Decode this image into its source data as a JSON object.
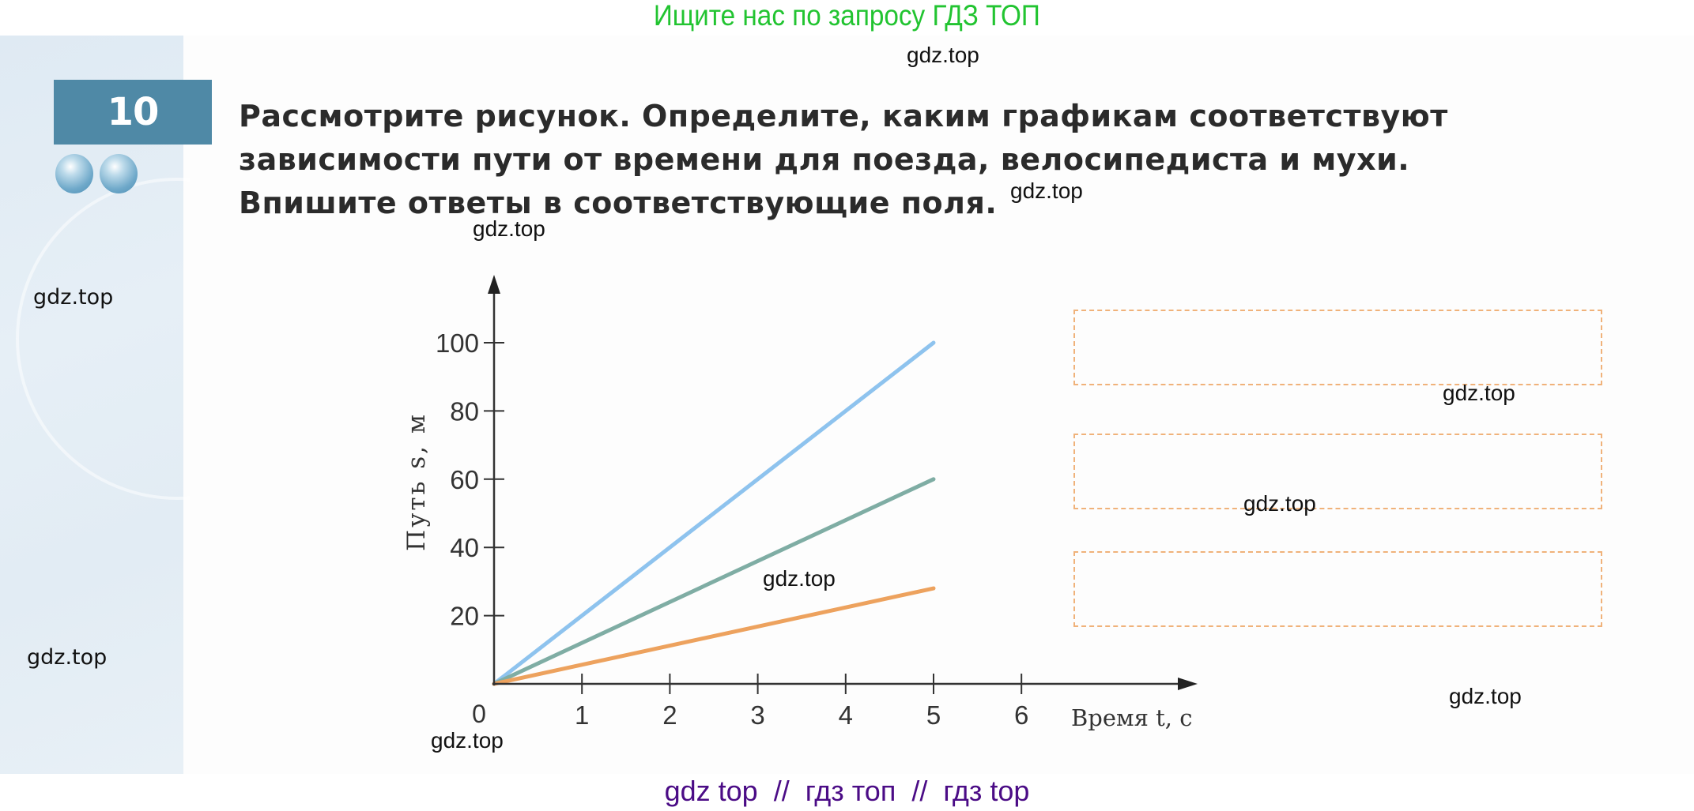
{
  "banner": {
    "text": "Ищите нас по запросу ГДЗ ТОП",
    "color": "#22c431"
  },
  "exercise": {
    "number": "10",
    "difficulty_dots": 2,
    "badge_color": "#4f89a6",
    "text_lines": [
      "Рассмотрите рисунок. Определите, каким графикам соответствуют",
      "зависимости пути от времени для поезда, велосипедиста и мухи.",
      "Впишите ответы в соответствующие поля."
    ]
  },
  "chart_data": {
    "type": "line",
    "title": "",
    "xlabel": "Время t, с",
    "ylabel": "Путь s, м",
    "x_ticks": [
      "1",
      "2",
      "3",
      "4",
      "5",
      "6"
    ],
    "y_ticks": [
      "20",
      "40",
      "60",
      "80",
      "100"
    ],
    "origin_label": "0",
    "xlim": [
      0,
      7
    ],
    "ylim": [
      0,
      115
    ],
    "grid": false,
    "legend": "none",
    "series": [
      {
        "name": "blue line",
        "color": "#8ec3ee",
        "x": [
          0,
          5
        ],
        "values": [
          0,
          100
        ]
      },
      {
        "name": "green line",
        "color": "#7fada4",
        "x": [
          0,
          5
        ],
        "values": [
          0,
          60
        ]
      },
      {
        "name": "orange line",
        "color": "#eda25e",
        "x": [
          0,
          5
        ],
        "values": [
          0,
          28
        ]
      }
    ]
  },
  "answer_fields": [
    {
      "value": ""
    },
    {
      "value": ""
    },
    {
      "value": ""
    }
  ],
  "watermarks": [
    "gdz.top",
    "gdz.top",
    "gdz.top",
    "gdz.top",
    "gdz.top",
    "gdz.top",
    "gdz.top",
    "gdz.top",
    "gdz.top",
    "gdz.top"
  ],
  "footer": {
    "text": "gdz top  //  гдз топ  //  гдз top",
    "color": "#4b0c86"
  }
}
